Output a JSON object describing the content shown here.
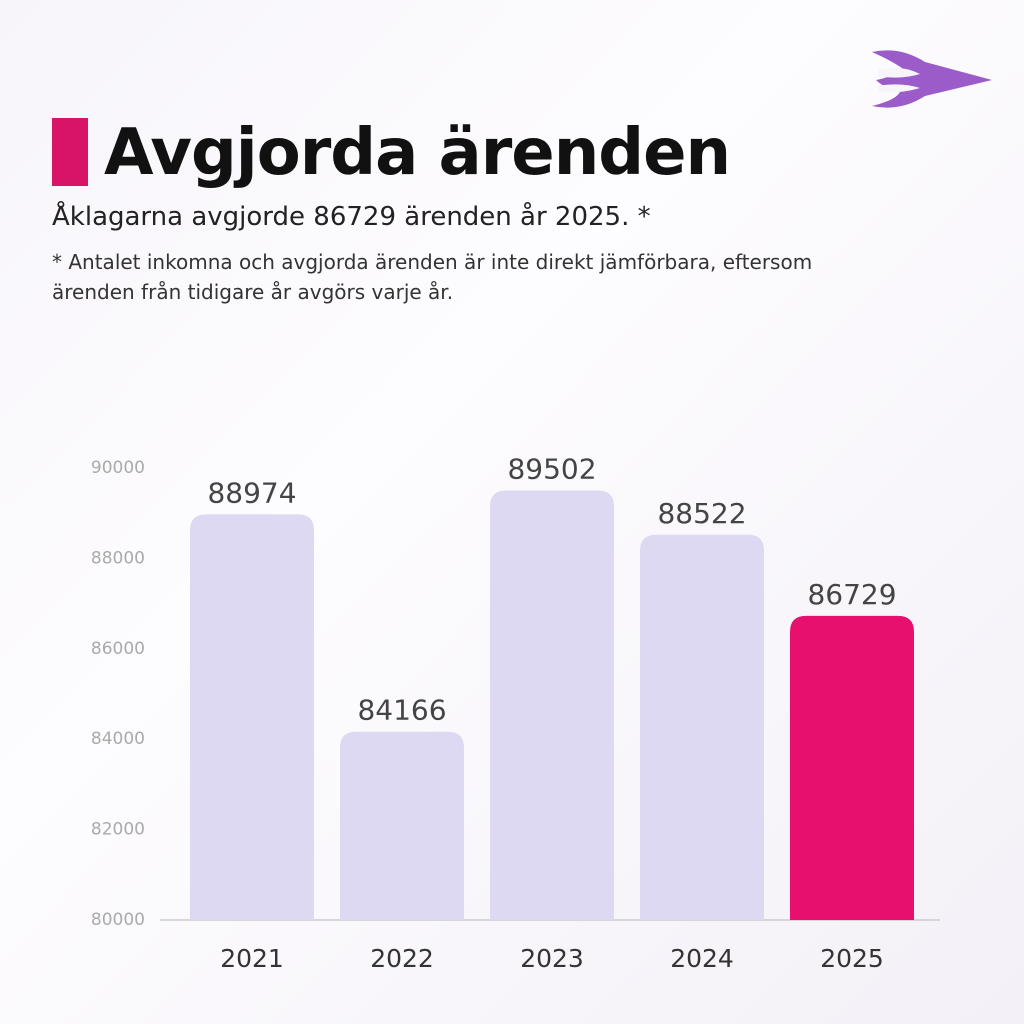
{
  "chart_data": {
    "type": "bar",
    "title": "Avgjorda ärenden",
    "subtitle": "Åklagarna avgjorde 86729 ärenden år 2025. *",
    "note": "* Antalet inkomna och avgjorda ärenden är inte direkt jämförbara, eftersom ärenden från tidigare år avgörs varje år.",
    "categories": [
      "2021",
      "2022",
      "2023",
      "2024",
      "2025"
    ],
    "values": [
      88974,
      84166,
      89502,
      88522,
      86729
    ],
    "colors": [
      "#ded9f2",
      "#ded9f2",
      "#ded9f2",
      "#ded9f2",
      "#e8106f"
    ],
    "ylim": [
      80000,
      90000
    ],
    "yticks": [
      80000,
      82000,
      84000,
      86000,
      88000,
      90000
    ],
    "grid": false
  }
}
